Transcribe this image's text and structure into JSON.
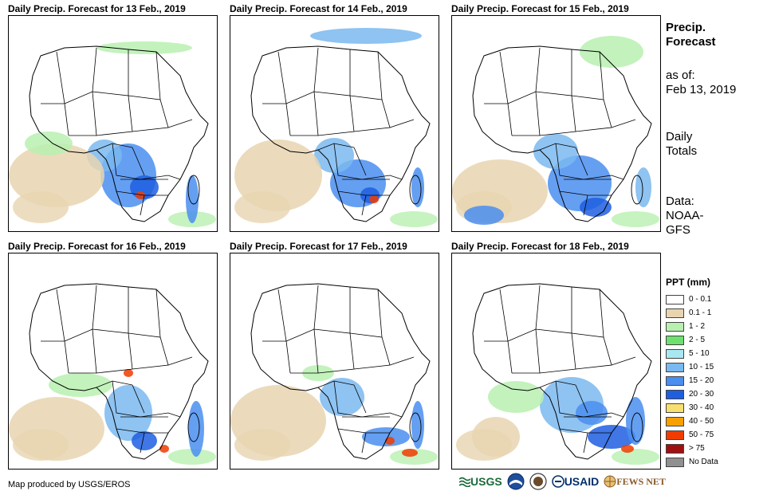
{
  "panels": [
    {
      "title": "Daily Precip. Forecast for 13 Feb., 2019"
    },
    {
      "title": "Daily Precip. Forecast for 14 Feb., 2019"
    },
    {
      "title": "Daily Precip. Forecast for 15 Feb., 2019"
    },
    {
      "title": "Daily Precip. Forecast for 16 Feb., 2019"
    },
    {
      "title": "Daily Precip. Forecast for 17 Feb., 2019"
    },
    {
      "title": "Daily Precip. Forecast for 18 Feb., 2019"
    }
  ],
  "sidebar": {
    "title_line1": "Precip.",
    "title_line2": "Forecast",
    "asof_label": "as of:",
    "asof_date": "Feb 13, 2019",
    "totals_line1": "Daily",
    "totals_line2": "Totals",
    "data_line1": "Data:",
    "data_line2": "NOAA-",
    "data_line3": "GFS"
  },
  "legend": {
    "title": "PPT (mm)",
    "items": [
      {
        "label": "0 - 0.1",
        "color": "#ffffff"
      },
      {
        "label": "0.1 - 1",
        "color": "#e8d5b0"
      },
      {
        "label": "1 - 2",
        "color": "#b8f0b0"
      },
      {
        "label": "2 - 5",
        "color": "#6ee06e"
      },
      {
        "label": "5 - 10",
        "color": "#a8e8f0"
      },
      {
        "label": "10 - 15",
        "color": "#7ab8f0"
      },
      {
        "label": "15 - 20",
        "color": "#4a8ef0"
      },
      {
        "label": "20 - 30",
        "color": "#1e5ee0"
      },
      {
        "label": "30 - 40",
        "color": "#f8e070"
      },
      {
        "label": "40 - 50",
        "color": "#f8a000"
      },
      {
        "label": "50 - 75",
        "color": "#f03c00"
      },
      {
        "label": "> 75",
        "color": "#a01010"
      },
      {
        "label": "No Data",
        "color": "#909090"
      }
    ]
  },
  "footer": {
    "credit": "Map produced by USGS/EROS",
    "logos": [
      "USGS",
      "NOAA",
      "DOI",
      "USAID",
      "FEWS NET"
    ]
  },
  "colors": {
    "land": "#ffffff",
    "dry": "#e8d5b0",
    "light": "#b8f0b0",
    "green": "#6ee06e",
    "cyan": "#a8e8f0",
    "blue1": "#7ab8f0",
    "blue2": "#4a8ef0",
    "blue3": "#1e5ee0",
    "red": "#f03c00",
    "orange": "#f8a000"
  }
}
